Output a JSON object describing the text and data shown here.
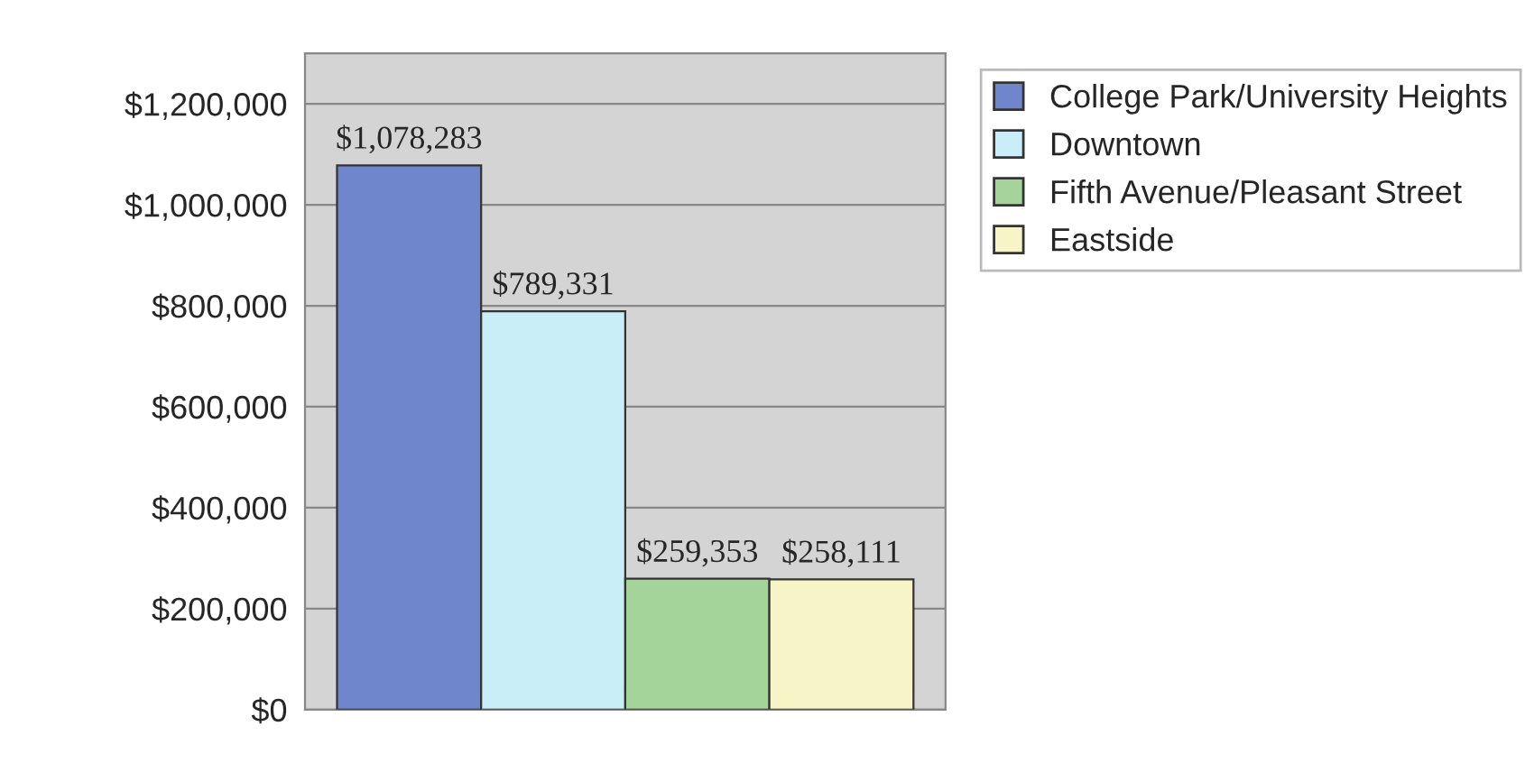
{
  "chart_data": {
    "type": "bar",
    "categories": [
      null
    ],
    "series": [
      {
        "name": "College Park/University Heights",
        "color": "#6f86cc",
        "values": [
          1078283
        ],
        "value_labels": [
          "$1,078,283"
        ]
      },
      {
        "name": "Downtown",
        "color": "#c9eef7",
        "values": [
          789331
        ],
        "value_labels": [
          "$789,331"
        ]
      },
      {
        "name": "Fifth Avenue/Pleasant Street",
        "color": "#a4d49a",
        "values": [
          259353
        ],
        "value_labels": [
          "$259,353"
        ]
      },
      {
        "name": "Eastside",
        "color": "#f7f5c8",
        "values": [
          258111
        ],
        "value_labels": [
          "$258,111"
        ]
      }
    ],
    "ylim": [
      0,
      1300000
    ],
    "yticks": [
      {
        "value": 0,
        "label": "$0"
      },
      {
        "value": 200000,
        "label": "$200,000"
      },
      {
        "value": 400000,
        "label": "$400,000"
      },
      {
        "value": 600000,
        "label": "$600,000"
      },
      {
        "value": 800000,
        "label": "$800,000"
      },
      {
        "value": 1000000,
        "label": "$1,000,000"
      },
      {
        "value": 1200000,
        "label": "$1,200,000"
      }
    ],
    "grid": "y",
    "legend": "top right"
  }
}
